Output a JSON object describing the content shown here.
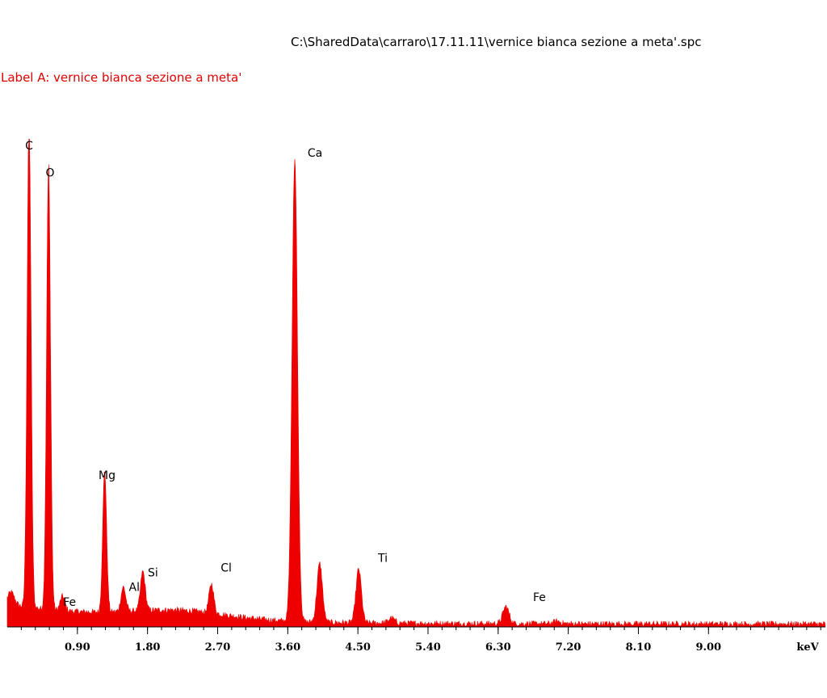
{
  "header": {
    "file_path": "C:\\SharedData\\carraro\\17.11.11\\vernice bianca sezione a meta'.spc",
    "label": "Label A: vernice bianca sezione a meta'"
  },
  "chart_data": {
    "type": "area",
    "x_unit": "keV",
    "xlim": [
      0,
      10.5
    ],
    "ylim": [
      0,
      1.0
    ],
    "x_ticks": [
      {
        "value": 0.9,
        "label": "0.90"
      },
      {
        "value": 1.8,
        "label": "1.80"
      },
      {
        "value": 2.7,
        "label": "2.70"
      },
      {
        "value": 3.6,
        "label": "3.60"
      },
      {
        "value": 4.5,
        "label": "4.50"
      },
      {
        "value": 5.4,
        "label": "5.40"
      },
      {
        "value": 6.3,
        "label": "6.30"
      },
      {
        "value": 7.2,
        "label": "7.20"
      },
      {
        "value": 8.1,
        "label": "8.10"
      },
      {
        "value": 9.0,
        "label": "9.00"
      }
    ],
    "color": "#ee0000",
    "peaks": [
      {
        "element": "C",
        "energy": 0.28,
        "height": 1.0,
        "width": 0.025
      },
      {
        "element": "O",
        "energy": 0.53,
        "height": 0.91,
        "width": 0.025
      },
      {
        "element": "Fe",
        "energy": 0.71,
        "height": 0.03,
        "width": 0.03
      },
      {
        "element": "Mg",
        "energy": 1.25,
        "height": 0.29,
        "width": 0.025
      },
      {
        "element": "Al",
        "energy": 1.49,
        "height": 0.05,
        "width": 0.03
      },
      {
        "element": "Si",
        "energy": 1.74,
        "height": 0.08,
        "width": 0.03
      },
      {
        "element": "Cl",
        "energy": 2.62,
        "height": 0.06,
        "width": 0.03
      },
      {
        "element": "Ca",
        "energy": 3.69,
        "height": 0.95,
        "width": 0.035
      },
      {
        "element": "",
        "energy": 4.01,
        "height": 0.12,
        "width": 0.035
      },
      {
        "element": "Ti",
        "energy": 4.51,
        "height": 0.11,
        "width": 0.035
      },
      {
        "element": "",
        "energy": 4.93,
        "height": 0.01,
        "width": 0.04
      },
      {
        "element": "Fe",
        "energy": 6.4,
        "height": 0.035,
        "width": 0.04
      },
      {
        "element": "",
        "energy": 7.06,
        "height": 0.005,
        "width": 0.05
      }
    ],
    "peak_labels": [
      {
        "text": "C",
        "energy": 0.28,
        "height": 0.985
      },
      {
        "text": "O",
        "energy": 0.55,
        "height": 0.93
      },
      {
        "text": "Fe",
        "energy": 0.8,
        "height": 0.05
      },
      {
        "text": "Mg",
        "energy": 1.28,
        "height": 0.31
      },
      {
        "text": "Al",
        "energy": 1.63,
        "height": 0.08
      },
      {
        "text": "Si",
        "energy": 1.87,
        "height": 0.11
      },
      {
        "text": "Cl",
        "energy": 2.81,
        "height": 0.12
      },
      {
        "text": "Ca",
        "energy": 3.95,
        "height": 0.97
      },
      {
        "text": "Ti",
        "energy": 4.82,
        "height": 0.14
      },
      {
        "text": "Fe",
        "energy": 6.83,
        "height": 0.06
      }
    ],
    "x_axis_label": "keV"
  }
}
